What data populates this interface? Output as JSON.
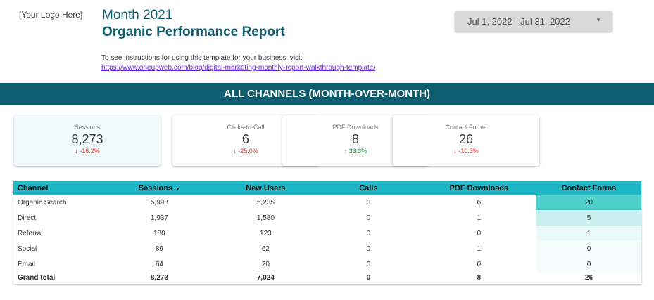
{
  "header": {
    "logo": "[Your Logo Here]",
    "title_line1": "Month 2021",
    "title_line2": "Organic Performance Report",
    "date_range": "Jul 1, 2022 - Jul 31, 2022",
    "instructions": "To see instructions for using this template for your business, visit:",
    "instructions_link": "https://www.oneupweb.com/blog/digital-marketing-monthly-report-walkthrough-template/"
  },
  "banner": "ALL CHANNELS (MONTH-OVER-MONTH)",
  "scorecards": [
    {
      "label": "Sessions",
      "value": "8,273",
      "change": "-16.2%",
      "direction": "down"
    },
    {
      "label": "Clicks-to-Call",
      "value": "6",
      "change": "-25.0%",
      "direction": "down"
    },
    {
      "label": "PDF Downloads",
      "value": "8",
      "change": "33.3%",
      "direction": "up"
    },
    {
      "label": "Contact Forms",
      "value": "26",
      "change": "-10.3%",
      "direction": "down"
    }
  ],
  "table": {
    "headers": [
      "Channel",
      "Sessions",
      "New Users",
      "Calls",
      "PDF Downloads",
      "Contact Forms"
    ],
    "rows": [
      [
        "Organic Search",
        "5,998",
        "5,235",
        "0",
        "6",
        "20"
      ],
      [
        "Direct",
        "1,937",
        "1,580",
        "0",
        "1",
        "5"
      ],
      [
        "Referral",
        "180",
        "123",
        "0",
        "0",
        "1"
      ],
      [
        "Social",
        "89",
        "62",
        "0",
        "1",
        "0"
      ],
      [
        "Email",
        "64",
        "20",
        "0",
        "0",
        "0"
      ]
    ],
    "total": [
      "Grand total",
      "8,273",
      "7,024",
      "0",
      "8",
      "26"
    ],
    "contact_form_heat": [
      "#4fd0cb",
      "#c7f0ef",
      "#eaf9f9",
      "#f4fcfc",
      "#f4fcfc"
    ],
    "header_color": "#1fb7c5"
  },
  "colors": {
    "primary": "#0e5e6f",
    "negative": "#d93025",
    "positive": "#188038",
    "link": "#6a2bd1"
  }
}
